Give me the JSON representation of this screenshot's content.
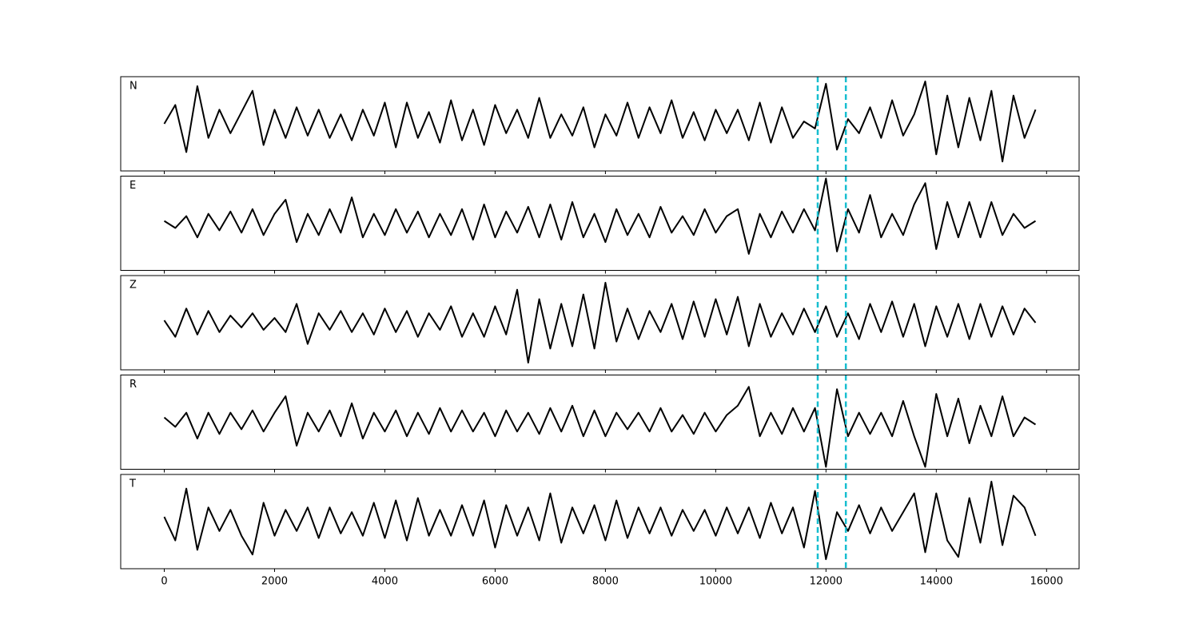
{
  "chart_data": {
    "type": "line",
    "layout": "stacked",
    "x": [
      0,
      200,
      400,
      600,
      800,
      1000,
      1200,
      1400,
      1600,
      1800,
      2000,
      2200,
      2400,
      2600,
      2800,
      3000,
      3200,
      3400,
      3600,
      3800,
      4000,
      4200,
      4400,
      4600,
      4800,
      5000,
      5200,
      5400,
      5600,
      5800,
      6000,
      6200,
      6400,
      6600,
      6800,
      7000,
      7200,
      7400,
      7600,
      7800,
      8000,
      8200,
      8400,
      8600,
      8800,
      9000,
      9200,
      9400,
      9600,
      9800,
      10000,
      10200,
      10400,
      10600,
      10800,
      11000,
      11200,
      11400,
      11600,
      11800,
      12000,
      12200,
      12400,
      12600,
      12800,
      13000,
      13200,
      13400,
      13600,
      13800,
      14000,
      14200,
      14400,
      14600,
      14800,
      15000,
      15200,
      15400,
      15600,
      15800
    ],
    "xlim": [
      -790,
      16590
    ],
    "xticks": [
      0,
      2000,
      4000,
      6000,
      8000,
      10000,
      12000,
      14000,
      16000
    ],
    "ylim": [
      -1,
      1
    ],
    "vlines": {
      "x": [
        11850,
        12360
      ],
      "color": "#17becf"
    },
    "series": [
      {
        "name": "N",
        "color": "#000000",
        "values": [
          0,
          0.4,
          -0.6,
          0.8,
          -0.3,
          0.3,
          -0.2,
          0.25,
          0.7,
          -0.45,
          0.3,
          -0.3,
          0.35,
          -0.25,
          0.3,
          -0.3,
          0.2,
          -0.35,
          0.3,
          -0.25,
          0.45,
          -0.5,
          0.45,
          -0.3,
          0.25,
          -0.4,
          0.5,
          -0.35,
          0.3,
          -0.45,
          0.4,
          -0.2,
          0.3,
          -0.3,
          0.55,
          -0.3,
          0.2,
          -0.25,
          0.35,
          -0.5,
          0.2,
          -0.25,
          0.45,
          -0.3,
          0.35,
          -0.2,
          0.5,
          -0.3,
          0.25,
          -0.35,
          0.3,
          -0.2,
          0.3,
          -0.35,
          0.45,
          -0.4,
          0.35,
          -0.3,
          0.05,
          -0.1,
          0.85,
          -0.55,
          0.1,
          -0.2,
          0.35,
          -0.3,
          0.5,
          -0.25,
          0.2,
          0.9,
          -0.65,
          0.6,
          -0.5,
          0.55,
          -0.35,
          0.7,
          -0.8,
          0.6,
          -0.3,
          0.3
        ]
      },
      {
        "name": "E",
        "color": "#000000",
        "values": [
          0.05,
          -0.1,
          0.15,
          -0.3,
          0.2,
          -0.15,
          0.25,
          -0.2,
          0.3,
          -0.25,
          0.2,
          0.5,
          -0.4,
          0.2,
          -0.25,
          0.3,
          -0.2,
          0.55,
          -0.3,
          0.2,
          -0.25,
          0.3,
          -0.2,
          0.25,
          -0.3,
          0.2,
          -0.25,
          0.3,
          -0.35,
          0.4,
          -0.3,
          0.25,
          -0.2,
          0.35,
          -0.3,
          0.4,
          -0.35,
          0.45,
          -0.3,
          0.2,
          -0.4,
          0.3,
          -0.25,
          0.2,
          -0.3,
          0.35,
          -0.2,
          0.15,
          -0.25,
          0.3,
          -0.2,
          0.15,
          0.3,
          -0.65,
          0.2,
          -0.3,
          0.25,
          -0.2,
          0.3,
          -0.15,
          0.95,
          -0.6,
          0.3,
          -0.2,
          0.6,
          -0.3,
          0.2,
          -0.25,
          0.4,
          0.85,
          -0.55,
          0.45,
          -0.3,
          0.45,
          -0.3,
          0.45,
          -0.25,
          0.2,
          -0.1,
          0.05
        ]
      },
      {
        "name": "Z",
        "color": "#000000",
        "values": [
          0.05,
          -0.3,
          0.3,
          -0.25,
          0.25,
          -0.2,
          0.15,
          -0.1,
          0.2,
          -0.15,
          0.1,
          -0.2,
          0.4,
          -0.45,
          0.2,
          -0.15,
          0.25,
          -0.2,
          0.2,
          -0.25,
          0.3,
          -0.2,
          0.25,
          -0.3,
          0.2,
          -0.15,
          0.35,
          -0.3,
          0.2,
          -0.3,
          0.35,
          -0.25,
          0.7,
          -0.85,
          0.5,
          -0.55,
          0.4,
          -0.5,
          0.6,
          -0.55,
          0.85,
          -0.4,
          0.3,
          -0.35,
          0.25,
          -0.2,
          0.4,
          -0.35,
          0.45,
          -0.3,
          0.5,
          -0.25,
          0.55,
          -0.5,
          0.4,
          -0.3,
          0.2,
          -0.25,
          0.3,
          -0.2,
          0.35,
          -0.3,
          0.2,
          -0.35,
          0.4,
          -0.2,
          0.45,
          -0.3,
          0.4,
          -0.5,
          0.35,
          -0.3,
          0.4,
          -0.35,
          0.4,
          -0.3,
          0.35,
          -0.25,
          0.3,
          0
        ]
      },
      {
        "name": "R",
        "color": "#000000",
        "values": [
          0.1,
          -0.1,
          0.2,
          -0.35,
          0.2,
          -0.25,
          0.2,
          -0.15,
          0.25,
          -0.2,
          0.2,
          0.55,
          -0.5,
          0.2,
          -0.2,
          0.25,
          -0.3,
          0.4,
          -0.35,
          0.2,
          -0.2,
          0.25,
          -0.3,
          0.2,
          -0.25,
          0.3,
          -0.2,
          0.25,
          -0.2,
          0.2,
          -0.3,
          0.25,
          -0.2,
          0.2,
          -0.25,
          0.3,
          -0.2,
          0.35,
          -0.3,
          0.25,
          -0.3,
          0.2,
          -0.15,
          0.2,
          -0.2,
          0.3,
          -0.2,
          0.15,
          -0.25,
          0.2,
          -0.2,
          0.15,
          0.35,
          0.75,
          -0.3,
          0.2,
          -0.25,
          0.3,
          -0.2,
          0.3,
          -0.95,
          0.7,
          -0.3,
          0.2,
          -0.25,
          0.2,
          -0.3,
          0.45,
          -0.3,
          -0.95,
          0.6,
          -0.3,
          0.5,
          -0.45,
          0.35,
          -0.3,
          0.55,
          -0.3,
          0.1,
          -0.05
        ]
      },
      {
        "name": "T",
        "color": "#000000",
        "values": [
          0.1,
          -0.4,
          0.7,
          -0.6,
          0.3,
          -0.2,
          0.25,
          -0.3,
          -0.7,
          0.4,
          -0.3,
          0.25,
          -0.2,
          0.3,
          -0.35,
          0.3,
          -0.25,
          0.2,
          -0.3,
          0.4,
          -0.35,
          0.45,
          -0.4,
          0.5,
          -0.3,
          0.25,
          -0.3,
          0.35,
          -0.3,
          0.45,
          -0.55,
          0.35,
          -0.3,
          0.3,
          -0.4,
          0.6,
          -0.45,
          0.3,
          -0.25,
          0.35,
          -0.4,
          0.45,
          -0.35,
          0.3,
          -0.25,
          0.3,
          -0.3,
          0.25,
          -0.2,
          0.25,
          -0.3,
          0.3,
          -0.25,
          0.3,
          -0.35,
          0.4,
          -0.25,
          0.3,
          -0.55,
          0.65,
          -0.8,
          0.2,
          -0.2,
          0.35,
          -0.25,
          0.3,
          -0.2,
          0.2,
          0.6,
          -0.65,
          0.6,
          -0.4,
          -0.75,
          0.5,
          -0.45,
          0.85,
          -0.5,
          0.55,
          0.3,
          -0.3
        ]
      }
    ]
  }
}
